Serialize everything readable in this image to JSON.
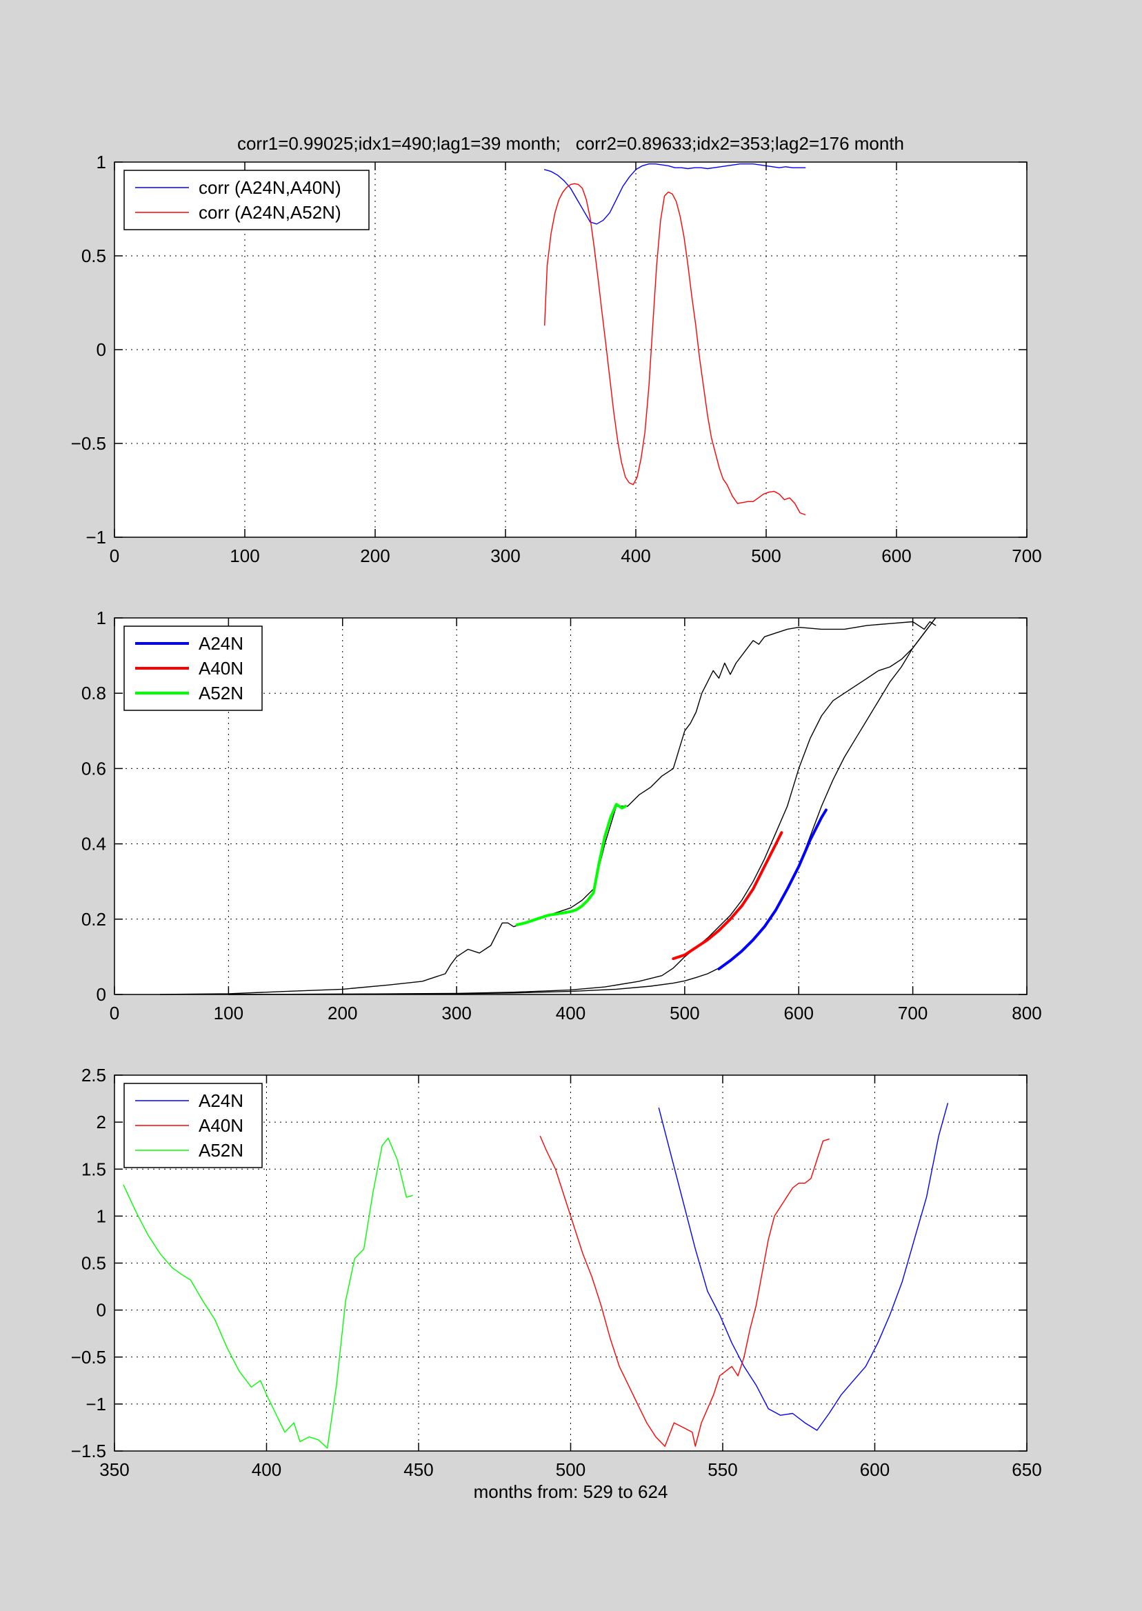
{
  "chart_data": [
    {
      "type": "line",
      "title": "corr1=0.99025;idx1=490;lag1=39 month;   corr2=0.89633;idx2=353;lag2=176 month",
      "xlabel": "",
      "ylabel": "",
      "xlim": [
        0,
        700
      ],
      "ylim": [
        -1,
        1
      ],
      "xticks": [
        0,
        100,
        200,
        300,
        400,
        500,
        600,
        700
      ],
      "xtick_labels": [
        "0",
        "100",
        "200",
        "300",
        "400",
        "500",
        "600",
        "700"
      ],
      "yticks": [
        -1,
        -0.5,
        0,
        0.5,
        1
      ],
      "ytick_labels": [
        "−1",
        "−0.5",
        "0",
        "0.5",
        "1"
      ],
      "grid": true,
      "legend": "top-left",
      "series": [
        {
          "name": "corr (A24N,A40N)",
          "color": "#0000ff",
          "width": 1.4,
          "legend": true,
          "x": [
            330,
            335,
            340,
            345,
            350,
            355,
            360,
            365,
            370,
            375,
            380,
            385,
            390,
            395,
            400,
            405,
            410,
            415,
            420,
            425,
            430,
            435,
            440,
            445,
            450,
            455,
            460,
            465,
            470,
            475,
            480,
            485,
            490,
            495,
            500,
            505,
            510,
            515,
            520,
            525,
            530
          ],
          "y": [
            0.96,
            0.95,
            0.93,
            0.9,
            0.86,
            0.8,
            0.74,
            0.68,
            0.67,
            0.69,
            0.73,
            0.8,
            0.87,
            0.92,
            0.96,
            0.98,
            0.99,
            0.99,
            0.985,
            0.98,
            0.97,
            0.97,
            0.965,
            0.97,
            0.97,
            0.965,
            0.97,
            0.975,
            0.98,
            0.985,
            0.99,
            0.99,
            0.99,
            0.985,
            0.98,
            0.975,
            0.97,
            0.975,
            0.97,
            0.97,
            0.97
          ]
        },
        {
          "name": "corr (A24N,A52N)",
          "color": "#ff0000",
          "width": 1.4,
          "legend": true,
          "x": [
            330,
            332,
            335,
            338,
            341,
            344,
            347,
            350,
            353,
            356,
            359,
            362,
            365,
            368,
            371,
            374,
            377,
            380,
            383,
            386,
            389,
            392,
            395,
            398,
            401,
            404,
            407,
            410,
            413,
            416,
            419,
            422,
            425,
            428,
            431,
            434,
            437,
            440,
            443,
            446,
            449,
            452,
            455,
            458,
            461,
            464,
            467,
            470,
            474,
            478,
            482,
            486,
            490,
            494,
            498,
            502,
            506,
            510,
            514,
            518,
            522,
            526,
            530
          ],
          "y": [
            0.13,
            0.45,
            0.62,
            0.73,
            0.8,
            0.84,
            0.865,
            0.88,
            0.885,
            0.88,
            0.86,
            0.8,
            0.7,
            0.55,
            0.38,
            0.2,
            0.03,
            -0.15,
            -0.33,
            -0.48,
            -0.6,
            -0.68,
            -0.71,
            -0.72,
            -0.68,
            -0.58,
            -0.44,
            -0.2,
            0.13,
            0.45,
            0.69,
            0.82,
            0.84,
            0.83,
            0.79,
            0.71,
            0.6,
            0.45,
            0.28,
            0.13,
            -0.05,
            -0.2,
            -0.35,
            -0.47,
            -0.55,
            -0.63,
            -0.69,
            -0.72,
            -0.78,
            -0.82,
            -0.815,
            -0.81,
            -0.81,
            -0.79,
            -0.77,
            -0.76,
            -0.755,
            -0.77,
            -0.8,
            -0.79,
            -0.82,
            -0.87,
            -0.88
          ]
        }
      ]
    },
    {
      "type": "line",
      "title": "",
      "xlabel": "",
      "ylabel": "",
      "xlim": [
        0,
        800
      ],
      "ylim": [
        0,
        1
      ],
      "xticks": [
        0,
        100,
        200,
        300,
        400,
        500,
        600,
        700,
        800
      ],
      "xtick_labels": [
        "0",
        "100",
        "200",
        "300",
        "400",
        "500",
        "600",
        "700",
        "800"
      ],
      "yticks": [
        0,
        0.2,
        0.4,
        0.6,
        0.8,
        1
      ],
      "ytick_labels": [
        "0",
        "0.2",
        "0.4",
        "0.6",
        "0.8",
        "1"
      ],
      "grid": true,
      "legend": "top-left",
      "series": [
        {
          "color": "#000000",
          "width": 1.4,
          "legend": false,
          "x": [
            40,
            100,
            150,
            200,
            240,
            270,
            280,
            290,
            295,
            300,
            305,
            310,
            320,
            330,
            335,
            340,
            345,
            350,
            360,
            370,
            380,
            390,
            400,
            410,
            420,
            430,
            440,
            450,
            460,
            470,
            480,
            490,
            495,
            500,
            505,
            510,
            515,
            520,
            525,
            530,
            535,
            540,
            545,
            550,
            555,
            560,
            565,
            570,
            580,
            590,
            600,
            620,
            640,
            660,
            680,
            700,
            710,
            715,
            720
          ],
          "y": [
            0,
            0.002,
            0.008,
            0.014,
            0.025,
            0.035,
            0.045,
            0.055,
            0.08,
            0.1,
            0.11,
            0.12,
            0.11,
            0.13,
            0.16,
            0.19,
            0.19,
            0.18,
            0.19,
            0.2,
            0.21,
            0.22,
            0.23,
            0.25,
            0.28,
            0.4,
            0.5,
            0.5,
            0.53,
            0.55,
            0.58,
            0.6,
            0.65,
            0.7,
            0.72,
            0.75,
            0.8,
            0.83,
            0.86,
            0.84,
            0.88,
            0.85,
            0.88,
            0.9,
            0.92,
            0.94,
            0.93,
            0.95,
            0.96,
            0.97,
            0.975,
            0.97,
            0.97,
            0.98,
            0.985,
            0.99,
            0.97,
            0.99,
            0.98
          ]
        },
        {
          "color": "#000000",
          "width": 1.4,
          "legend": false,
          "x": [
            100,
            200,
            300,
            350,
            400,
            430,
            460,
            480,
            490,
            500,
            510,
            520,
            530,
            540,
            550,
            560,
            570,
            580,
            590,
            600,
            610,
            620,
            630,
            640,
            650,
            660,
            670,
            680,
            690,
            700,
            710,
            720
          ],
          "y": [
            0,
            0.001,
            0.003,
            0.006,
            0.012,
            0.02,
            0.035,
            0.05,
            0.07,
            0.1,
            0.125,
            0.15,
            0.18,
            0.21,
            0.25,
            0.3,
            0.36,
            0.43,
            0.5,
            0.6,
            0.68,
            0.74,
            0.78,
            0.8,
            0.82,
            0.84,
            0.86,
            0.87,
            0.89,
            0.92,
            0.96,
            1.0
          ]
        },
        {
          "color": "#000000",
          "width": 1.4,
          "legend": false,
          "x": [
            100,
            200,
            300,
            350,
            400,
            440,
            470,
            490,
            500,
            510,
            520,
            530,
            540,
            550,
            560,
            570,
            580,
            590,
            600,
            610,
            620,
            630,
            640,
            650,
            660,
            670,
            680,
            690,
            700,
            710,
            720
          ],
          "y": [
            0,
            0.001,
            0.002,
            0.004,
            0.008,
            0.014,
            0.022,
            0.03,
            0.036,
            0.045,
            0.055,
            0.07,
            0.09,
            0.115,
            0.145,
            0.18,
            0.225,
            0.28,
            0.34,
            0.42,
            0.5,
            0.57,
            0.63,
            0.68,
            0.73,
            0.78,
            0.83,
            0.87,
            0.92,
            0.96,
            1.0
          ]
        },
        {
          "name": "A24N",
          "color": "#0000ff",
          "width": 4,
          "legend": true,
          "x": [
            530,
            540,
            550,
            560,
            570,
            580,
            590,
            600,
            610,
            620,
            624
          ],
          "y": [
            0.068,
            0.09,
            0.115,
            0.145,
            0.18,
            0.225,
            0.28,
            0.34,
            0.41,
            0.47,
            0.49
          ]
        },
        {
          "name": "A40N",
          "color": "#ff0000",
          "width": 4,
          "legend": true,
          "x": [
            490,
            500,
            510,
            520,
            530,
            540,
            550,
            560,
            570,
            580,
            585
          ],
          "y": [
            0.095,
            0.105,
            0.125,
            0.145,
            0.17,
            0.2,
            0.235,
            0.28,
            0.34,
            0.4,
            0.43
          ]
        },
        {
          "name": "A52N",
          "color": "#00ff00",
          "width": 4,
          "legend": true,
          "x": [
            353,
            360,
            370,
            380,
            390,
            400,
            405,
            410,
            415,
            420,
            425,
            430,
            435,
            440,
            445,
            448
          ],
          "y": [
            0.185,
            0.19,
            0.2,
            0.21,
            0.215,
            0.22,
            0.225,
            0.235,
            0.25,
            0.27,
            0.35,
            0.42,
            0.47,
            0.505,
            0.495,
            0.5
          ]
        }
      ]
    },
    {
      "type": "line",
      "title": "",
      "xlabel": "months from: 529 to 624",
      "ylabel": "",
      "xlim": [
        350,
        650
      ],
      "ylim": [
        -1.5,
        2.5
      ],
      "xticks": [
        350,
        400,
        450,
        500,
        550,
        600,
        650
      ],
      "xtick_labels": [
        "350",
        "400",
        "450",
        "500",
        "550",
        "600",
        "650"
      ],
      "yticks": [
        -1.5,
        -1,
        -0.5,
        0,
        0.5,
        1,
        1.5,
        2,
        2.5
      ],
      "ytick_labels": [
        "−1.5",
        "−1",
        "−0.5",
        "0",
        "0.5",
        "1",
        "1.5",
        "2",
        "2.5"
      ],
      "grid": true,
      "legend": "top-left",
      "series": [
        {
          "name": "A24N",
          "color": "#0000ff",
          "width": 1.4,
          "legend": true,
          "x": [
            529,
            533,
            537,
            541,
            545,
            549,
            553,
            557,
            561,
            565,
            569,
            573,
            577,
            581,
            585,
            589,
            593,
            597,
            601,
            605,
            609,
            613,
            617,
            621,
            624
          ],
          "y": [
            2.15,
            1.65,
            1.15,
            0.65,
            0.2,
            -0.05,
            -0.35,
            -0.6,
            -0.8,
            -1.05,
            -1.12,
            -1.1,
            -1.2,
            -1.28,
            -1.1,
            -0.9,
            -0.75,
            -0.6,
            -0.35,
            -0.05,
            0.3,
            0.75,
            1.2,
            1.85,
            2.2
          ]
        },
        {
          "name": "A40N",
          "color": "#ff0000",
          "width": 1.4,
          "legend": true,
          "x": [
            490,
            492,
            495,
            498,
            501,
            504,
            507,
            510,
            513,
            516,
            519,
            522,
            525,
            528,
            531,
            534,
            537,
            540,
            541,
            543,
            545,
            547,
            549,
            551,
            553,
            555,
            557,
            559,
            561,
            563,
            565,
            567,
            569,
            571,
            573,
            575,
            577,
            579,
            581,
            583,
            585
          ],
          "y": [
            1.85,
            1.7,
            1.5,
            1.2,
            0.9,
            0.6,
            0.35,
            0.05,
            -0.3,
            -0.6,
            -0.8,
            -1.0,
            -1.2,
            -1.35,
            -1.45,
            -1.2,
            -1.25,
            -1.3,
            -1.45,
            -1.2,
            -1.05,
            -0.9,
            -0.7,
            -0.65,
            -0.6,
            -0.7,
            -0.5,
            -0.2,
            0.05,
            0.4,
            0.75,
            1.0,
            1.1,
            1.2,
            1.3,
            1.35,
            1.35,
            1.4,
            1.6,
            1.8,
            1.82
          ]
        },
        {
          "name": "A52N",
          "color": "#00ff00",
          "width": 1.4,
          "legend": true,
          "x": [
            353,
            357,
            361,
            365,
            369,
            372,
            375,
            379,
            383,
            387,
            391,
            395,
            398,
            400,
            403,
            406,
            409,
            411,
            414,
            417,
            420,
            423,
            426,
            429,
            432,
            435,
            438,
            440,
            443,
            446,
            448
          ],
          "y": [
            1.33,
            1.05,
            0.8,
            0.6,
            0.45,
            0.38,
            0.32,
            0.1,
            -0.1,
            -0.4,
            -0.65,
            -0.82,
            -0.75,
            -0.9,
            -1.1,
            -1.3,
            -1.2,
            -1.4,
            -1.35,
            -1.38,
            -1.47,
            -0.8,
            0.1,
            0.55,
            0.65,
            1.25,
            1.75,
            1.83,
            1.6,
            1.2,
            1.22
          ]
        }
      ]
    }
  ]
}
